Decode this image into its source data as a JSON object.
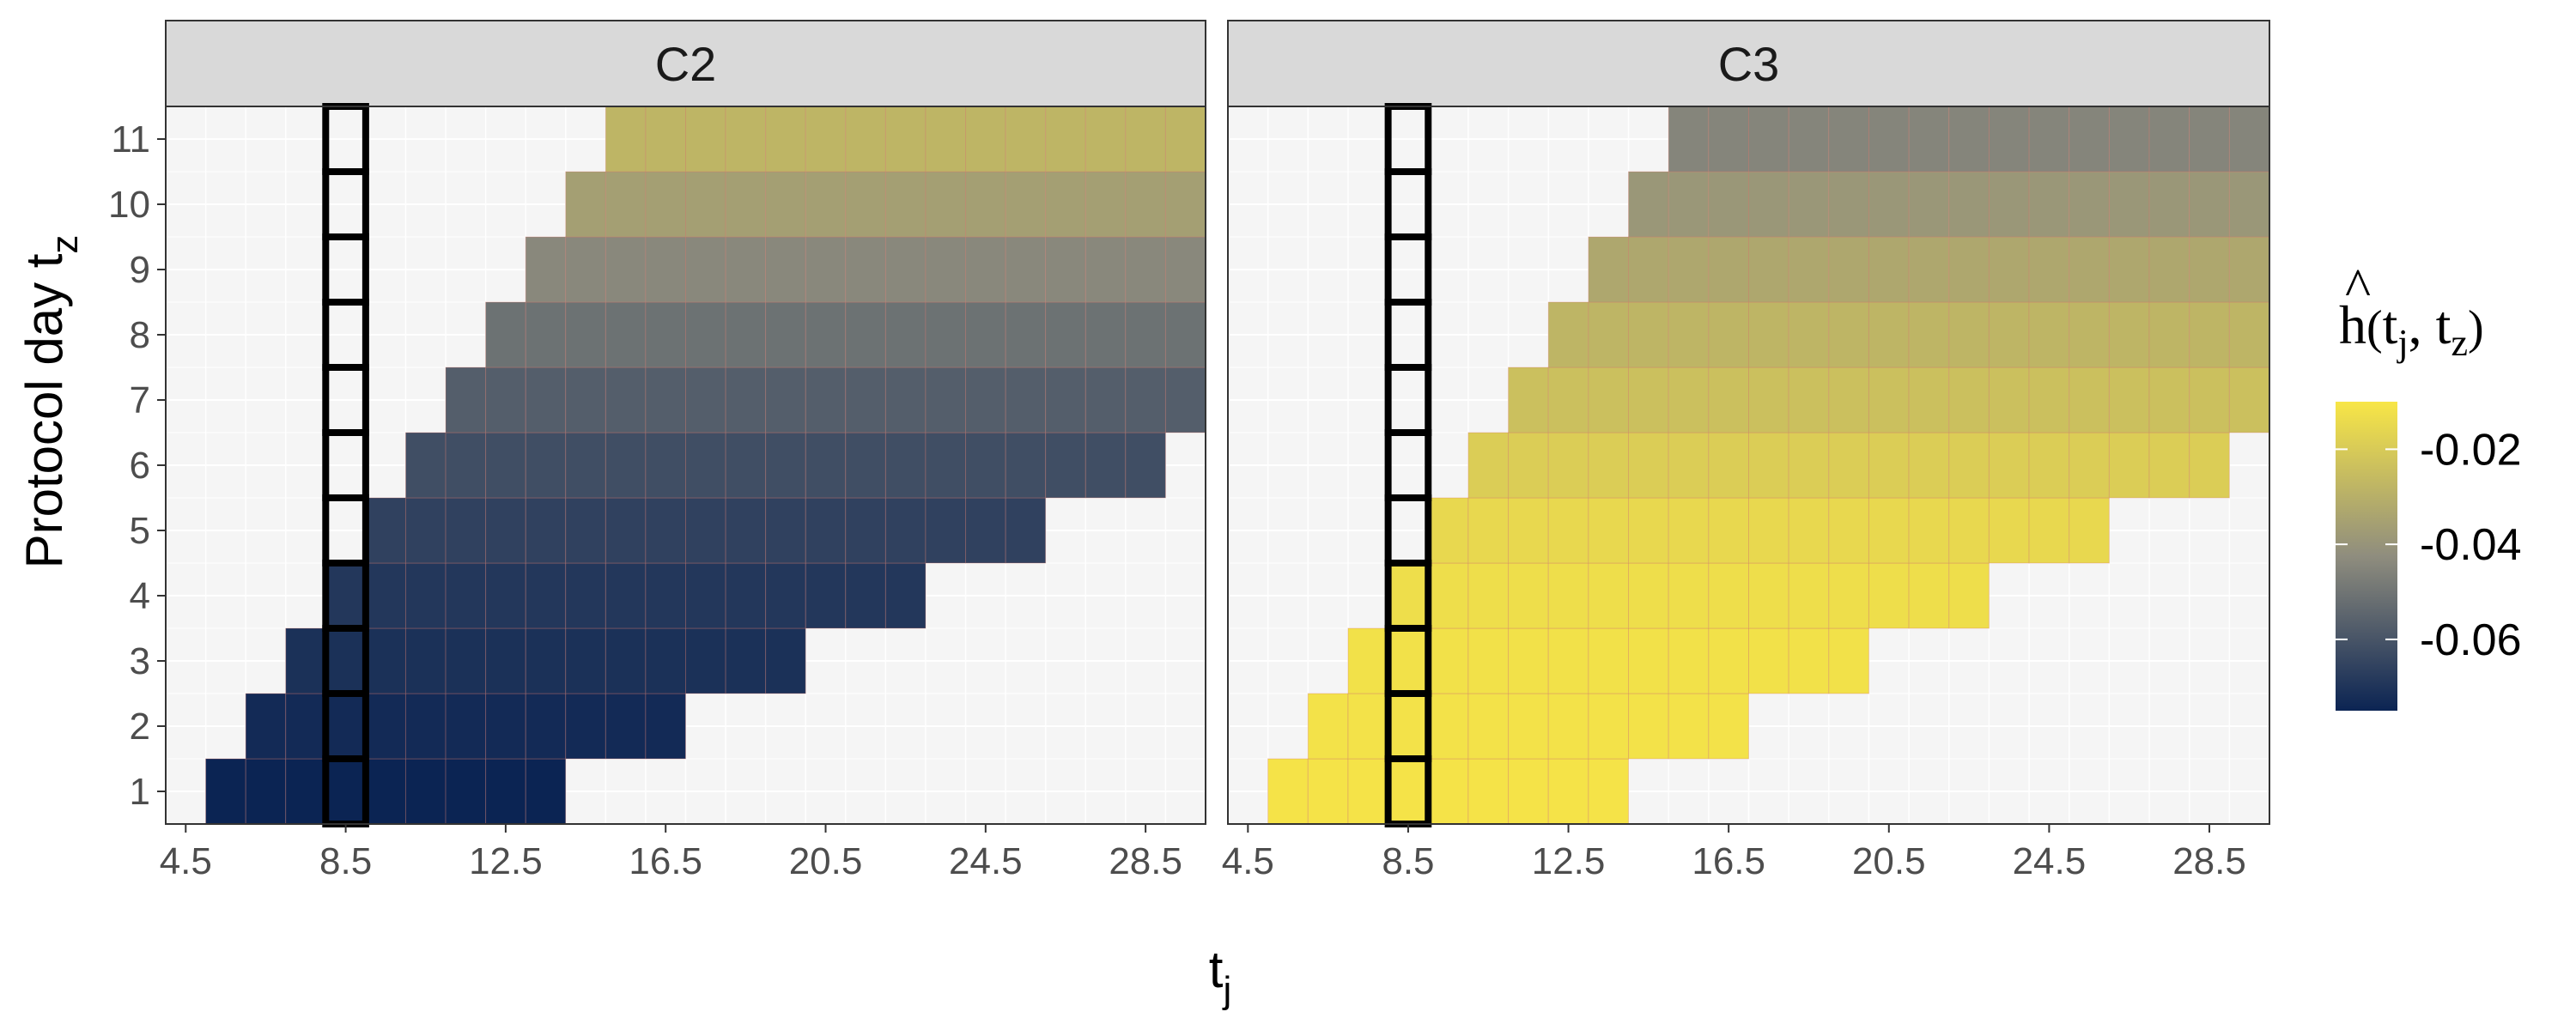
{
  "chart_data": {
    "type": "heatmap",
    "xlabel_main": "t",
    "xlabel_sub": "j",
    "ylabel_main": "Protocol day  t",
    "ylabel_sub": "z",
    "x_ticks": [
      4.5,
      8.5,
      12.5,
      16.5,
      20.5,
      24.5,
      28.5
    ],
    "y_ticks": [
      1,
      2,
      3,
      4,
      5,
      6,
      7,
      8,
      9,
      10,
      11
    ],
    "xlim": [
      4.0,
      30.0
    ],
    "ylim": [
      0.5,
      11.5
    ],
    "grid": true,
    "legend": {
      "position": "right",
      "title": "ĥ(t_j, t_z)",
      "ticks": [
        -0.02,
        -0.04,
        -0.06
      ],
      "tick_labels": [
        "-0.02",
        "-0.04",
        "-0.06"
      ],
      "range": [
        -0.075,
        -0.01
      ]
    },
    "colors": {
      "low": "#0b2453",
      "mid": "#8f8d7e",
      "high": "#f8e646",
      "empty": "#f5f5f5",
      "strip_bg": "#d9d9d9",
      "highlight_box": "#000000"
    },
    "highlight_column_x": 8.5,
    "row_x_ranges": [
      {
        "tz": 1,
        "x_from": 5.5,
        "x_to": 13.5
      },
      {
        "tz": 2,
        "x_from": 6.5,
        "x_to": 16.5
      },
      {
        "tz": 3,
        "x_from": 7.5,
        "x_to": 19.5
      },
      {
        "tz": 4,
        "x_from": 8.5,
        "x_to": 22.5
      },
      {
        "tz": 5,
        "x_from": 9.5,
        "x_to": 25.5
      },
      {
        "tz": 6,
        "x_from": 10.5,
        "x_to": 28.5
      },
      {
        "tz": 7,
        "x_from": 11.5,
        "x_to": 29.5
      },
      {
        "tz": 8,
        "x_from": 12.5,
        "x_to": 29.5
      },
      {
        "tz": 9,
        "x_from": 13.5,
        "x_to": 29.5
      },
      {
        "tz": 10,
        "x_from": 14.5,
        "x_to": 29.5
      },
      {
        "tz": 11,
        "x_from": 15.5,
        "x_to": 29.5
      }
    ],
    "panels": [
      {
        "strip": "C2",
        "row_values": [
          -0.075,
          -0.073,
          -0.071,
          -0.069,
          -0.066,
          -0.062,
          -0.057,
          -0.051,
          -0.044,
          -0.036,
          -0.028
        ]
      },
      {
        "strip": "C3",
        "row_values": [
          -0.011,
          -0.0115,
          -0.012,
          -0.013,
          -0.015,
          -0.019,
          -0.024,
          -0.028,
          -0.033,
          -0.039,
          -0.045
        ]
      }
    ]
  }
}
